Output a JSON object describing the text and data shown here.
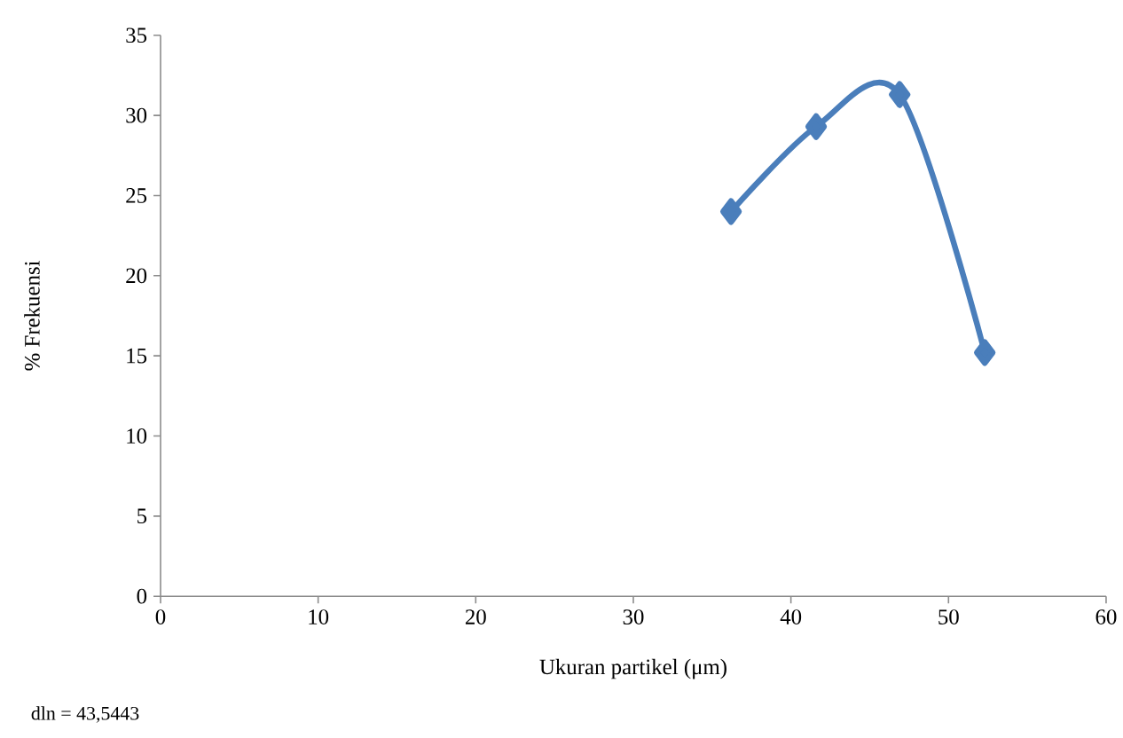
{
  "chart_data": {
    "type": "line",
    "xlabel": "Ukuran partikel (μm)",
    "ylabel": "% Frekuensi",
    "annotations": [
      "dln = 43,5443"
    ],
    "x": [
      36.2,
      41.6,
      46.9,
      52.3
    ],
    "series": [
      {
        "color": "#4a7ebb",
        "values": [
          24.0,
          29.3,
          31.3,
          15.2
        ]
      }
    ],
    "xlim": [
      0,
      60
    ],
    "xticks": [
      0,
      10,
      20,
      30,
      40,
      50,
      60
    ],
    "ylim": [
      0,
      35
    ],
    "yticks": [
      0,
      5,
      10,
      15,
      20,
      25,
      30,
      35
    ],
    "marker": "diamond",
    "line_style": "solid",
    "grid": false
  }
}
